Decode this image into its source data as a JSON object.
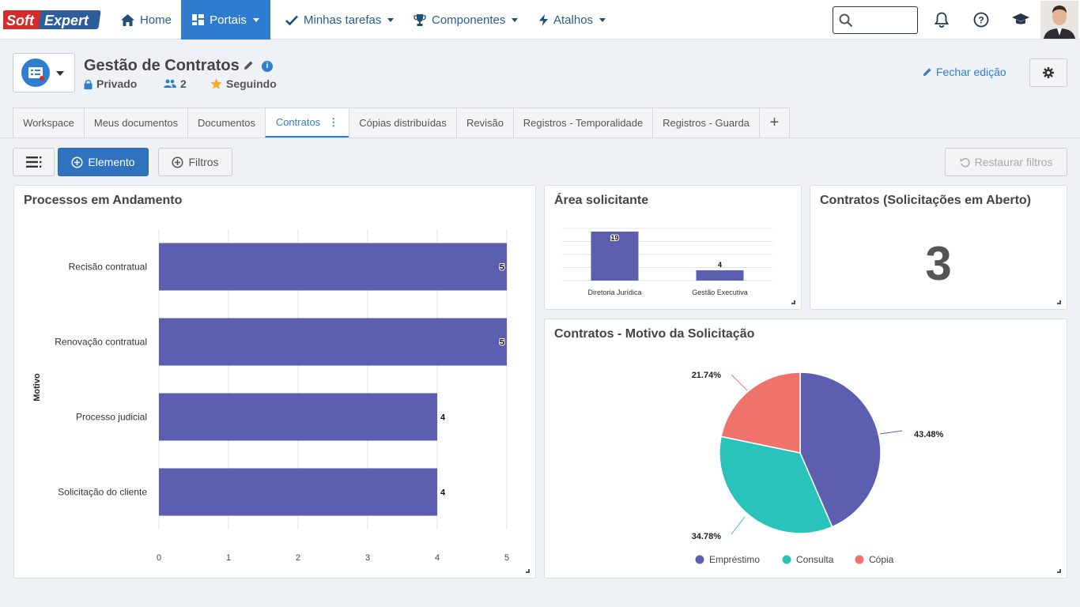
{
  "brand": {
    "logo_text_1": "Soft",
    "logo_text_2": "Expert"
  },
  "nav": {
    "home": "Home",
    "portais": "Portais",
    "tarefas": "Minhas tarefas",
    "componentes": "Componentes",
    "atalhos": "Atalhos",
    "search_placeholder": ""
  },
  "header": {
    "title": "Gestão de Contratos",
    "privacy": "Privado",
    "members": "2",
    "following": "Seguindo",
    "close_edit": "Fechar edição"
  },
  "tabs": [
    {
      "label": "Workspace"
    },
    {
      "label": "Meus documentos"
    },
    {
      "label": "Documentos"
    },
    {
      "label": "Contratos"
    },
    {
      "label": "Cópias distribuídas"
    },
    {
      "label": "Revisão"
    },
    {
      "label": "Registros - Temporalidade"
    },
    {
      "label": "Registros - Guarda"
    },
    {
      "label": "+"
    }
  ],
  "toolbar": {
    "element": "Elemento",
    "filters": "Filtros",
    "restore": "Restaurar filtros"
  },
  "colors": {
    "bar": "#5c5fb0",
    "teal": "#2ac3bb",
    "salmon": "#ef736a",
    "accent": "#2f7fd0"
  },
  "widgets": {
    "processos": {
      "title": "Processos em Andamento"
    },
    "area": {
      "title": "Área solicitante"
    },
    "abertos": {
      "title": "Contratos (Solicitações em Aberto)",
      "value": "3"
    },
    "motivo": {
      "title": "Contratos - Motivo da Solicitação"
    }
  },
  "chart_data": [
    {
      "type": "bar",
      "orientation": "horizontal",
      "title": "Processos em Andamento",
      "ylabel": "Motivo",
      "categories": [
        "Recisão contratual",
        "Renovação contratual",
        "Processo judicial",
        "Solicitação do cliente"
      ],
      "values": [
        5,
        5,
        4,
        4
      ],
      "x_ticks": [
        "0",
        "1",
        "2",
        "3",
        "4",
        "5"
      ],
      "xlim": [
        0,
        5
      ],
      "grid": true
    },
    {
      "type": "bar",
      "title": "Área solicitante",
      "categories": [
        "Diretoria Jurídica",
        "Gestão Executiva"
      ],
      "values": [
        19,
        4
      ],
      "grid": true
    },
    {
      "type": "pie",
      "title": "Contratos - Motivo da Solicitação",
      "labels": [
        "Empréstimo",
        "Consulta",
        "Cópia"
      ],
      "values": [
        43.48,
        34.78,
        21.74
      ],
      "value_labels": [
        "43.48%",
        "34.78%",
        "21.74%"
      ],
      "colors": [
        "#5c5fb0",
        "#2ac3bb",
        "#ef736a"
      ],
      "legend": "bottom"
    }
  ]
}
